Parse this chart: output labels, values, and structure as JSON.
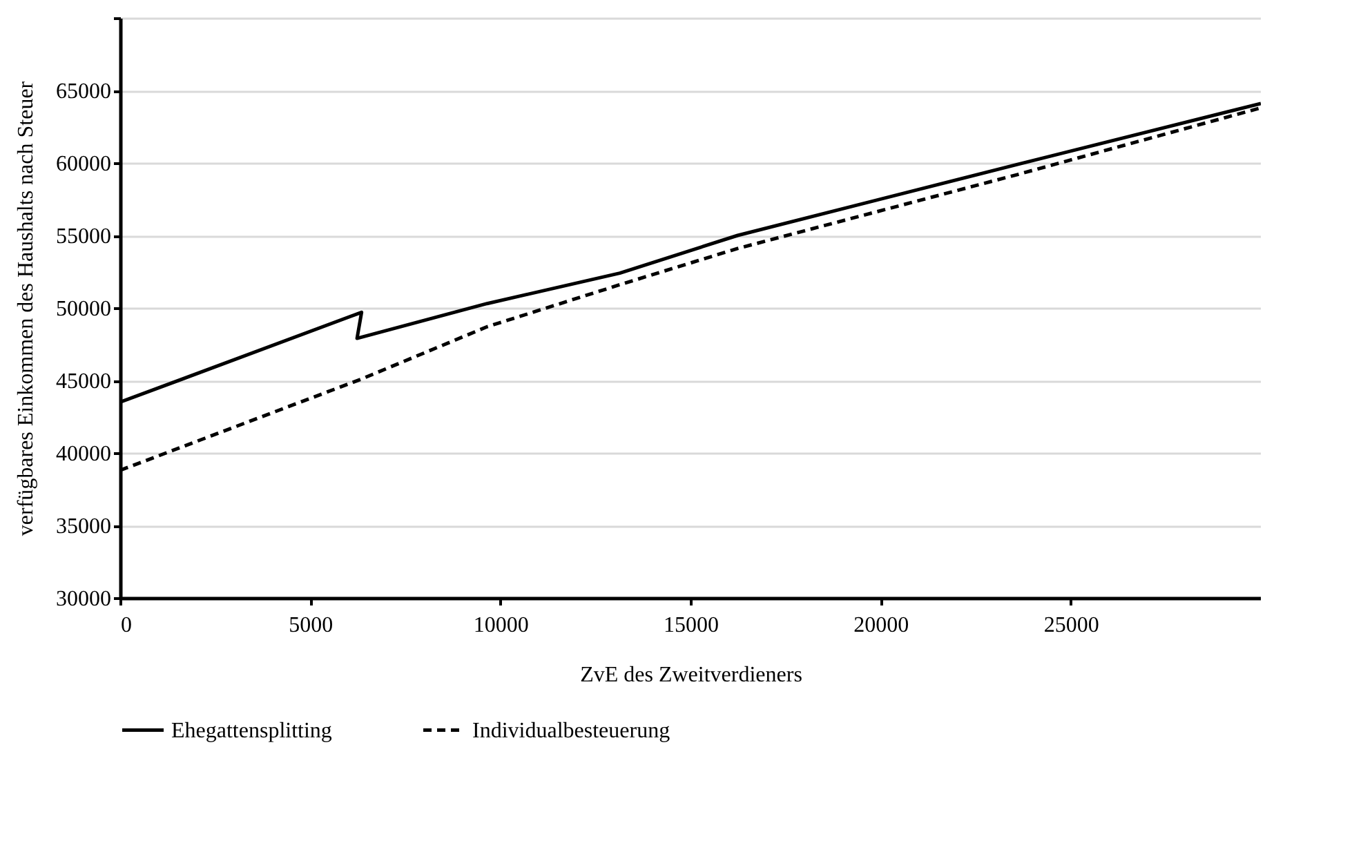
{
  "chart_data": {
    "type": "line",
    "xlabel": "ZvE des Zweitverdieners",
    "ylabel": "verfügbares Einkommen des Haushalts nach Steuer",
    "xlim": [
      0,
      30000
    ],
    "xticks": [
      0,
      5000,
      10000,
      15000,
      20000,
      25000
    ],
    "ylim": [
      30000,
      70000
    ],
    "yticks": [
      30000,
      35000,
      40000,
      45000,
      50000,
      55000,
      60000,
      65000,
      {
        "value": 70000,
        "label": null
      }
    ],
    "grid": "y",
    "legend": "bottom",
    "series": [
      {
        "name": "Ehegattensplitting",
        "color": "#000000",
        "line_style": "solid",
        "x": [
          0,
          6350,
          6230,
          9650,
          13140,
          16240,
          23600,
          30000
        ],
        "values": [
          43500,
          49700,
          47900,
          50300,
          52400,
          55000,
          59900,
          64100
        ]
      },
      {
        "name": "Individualbesteuerung",
        "color": "#000000",
        "line_style": "dashed",
        "x": [
          0,
          6350,
          9650,
          13140,
          16240,
          23600,
          30000
        ],
        "values": [
          38800,
          45100,
          48700,
          51600,
          54100,
          59200,
          63800
        ]
      }
    ]
  }
}
